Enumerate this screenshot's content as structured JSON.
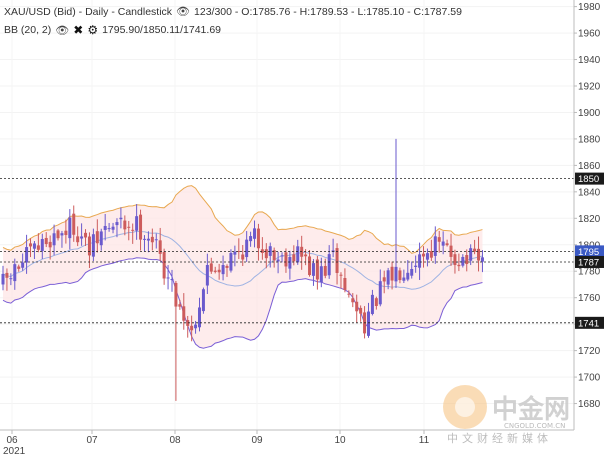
{
  "legend": {
    "title": "XAU/USD (Bid) - Daily - Candlestick",
    "ohlc": "123/300 - O:1785.76 - H:1789.53 - L:1785.10 - C:1787.59",
    "indicator_name": "BB (20, 2)",
    "indicator_values": "1795.90/1850.11/1741.69"
  },
  "watermark": {
    "name": "中金网",
    "url": "CNGOLD.COM.CN",
    "tagline": "中文财经新媒体"
  },
  "colors": {
    "up": "#6a5acd",
    "down": "#cd5c5c",
    "upper_band": "#e8a850",
    "middle_band": "#9fb3e3",
    "lower_band": "#7b5fd6",
    "band_fill": "#fde4e4",
    "price_tag_dark": "#1a1a1a",
    "price_tag_blue": "#3a59c4"
  },
  "chart_data": {
    "type": "candlestick",
    "ylim": [
      1660,
      1985
    ],
    "y_ticks": [
      1680,
      1700,
      1720,
      1740,
      1760,
      1780,
      1800,
      1820,
      1840,
      1860,
      1880,
      1900,
      1920,
      1940,
      1960,
      1980
    ],
    "x_ticks": [
      "06",
      "07",
      "08",
      "09",
      "10",
      "11"
    ],
    "x_year": "2021",
    "price_lines": [
      {
        "value": 1850,
        "label": "1850",
        "kind": "upper"
      },
      {
        "value": 1795,
        "label": "1795",
        "kind": "middle"
      },
      {
        "value": 1787,
        "label": "1787",
        "kind": "close"
      },
      {
        "value": 1741,
        "label": "1741",
        "kind": "lower"
      }
    ],
    "start_price": 1770,
    "candle_count": 123,
    "series": [
      {
        "name": "XAU/USD"
      },
      {
        "name": "BB (20, 2)"
      }
    ]
  }
}
